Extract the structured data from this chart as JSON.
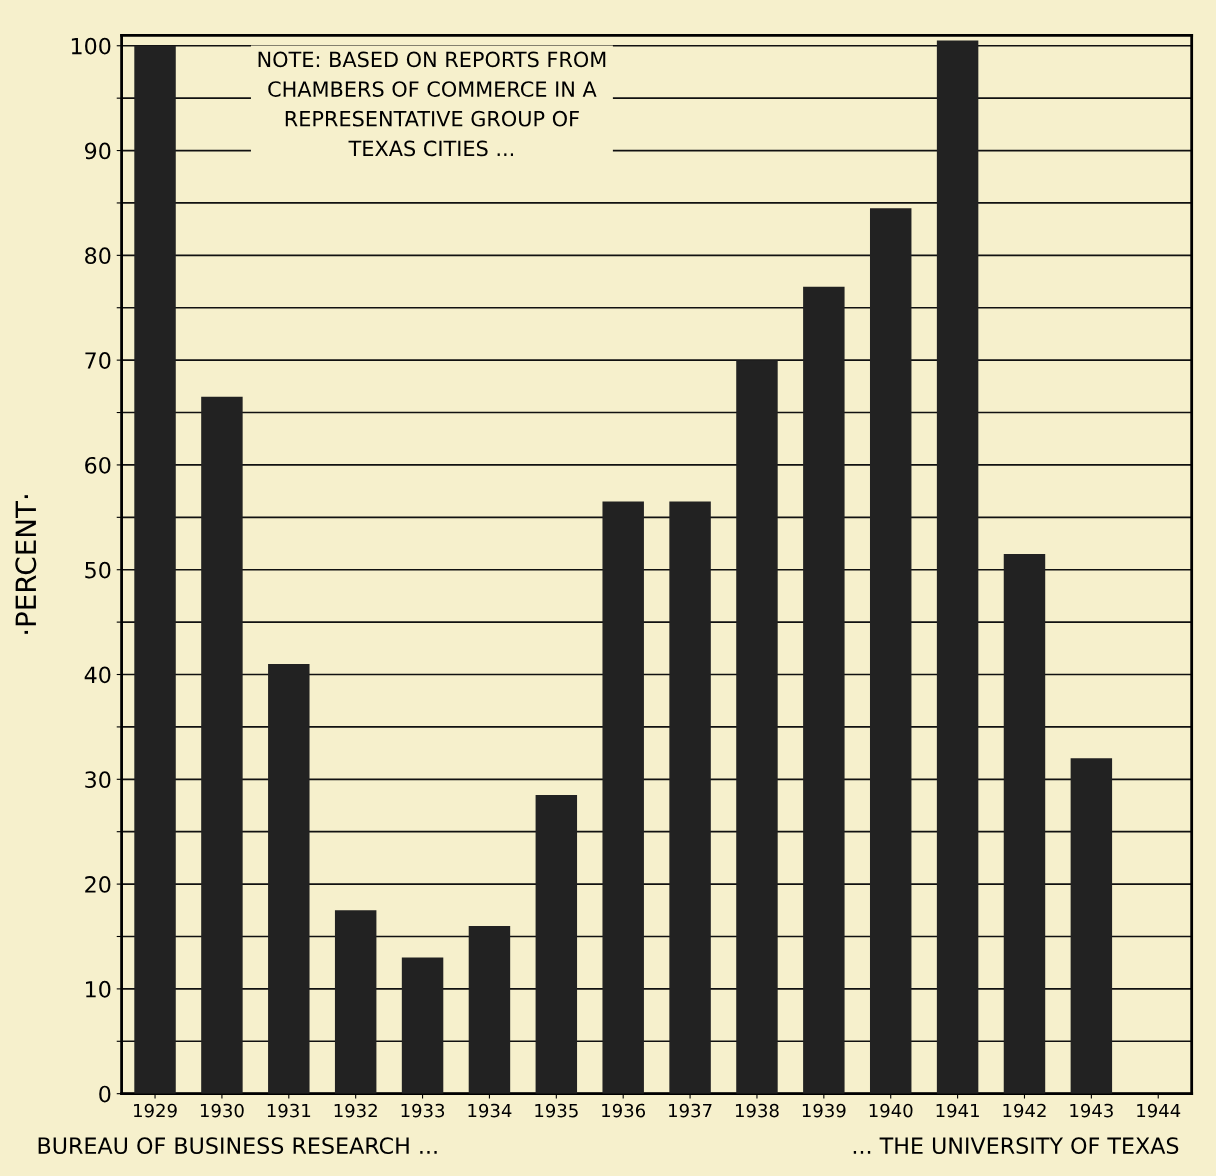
{
  "chart_data": {
    "type": "bar",
    "ylabel": "·PERCENT·",
    "categories": [
      "1929",
      "1930",
      "1931",
      "1932",
      "1933",
      "1934",
      "1935",
      "1936",
      "1937",
      "1938",
      "1939",
      "1940",
      "1941",
      "1942",
      "1943",
      "1944"
    ],
    "values": [
      100,
      66.5,
      41,
      17.5,
      13,
      16,
      28.5,
      56.5,
      56.5,
      70,
      77,
      84.5,
      100.5,
      51.5,
      32,
      null
    ],
    "color": "#222222",
    "ylim": [
      0,
      101
    ],
    "yticks": [
      0,
      {
        "value": 5,
        "label": null
      },
      10,
      {
        "value": 15,
        "label": null
      },
      20,
      {
        "value": 25,
        "label": null
      },
      30,
      {
        "value": 35,
        "label": null
      },
      40,
      {
        "value": 45,
        "label": null
      },
      50,
      {
        "value": 55,
        "label": null
      },
      60,
      {
        "value": 65,
        "label": null
      },
      70,
      {
        "value": 75,
        "label": null
      },
      80,
      {
        "value": 85,
        "label": null
      },
      90,
      {
        "value": 95,
        "label": null
      },
      100
    ],
    "grid": "y",
    "annotations": [
      "NOTE: BASED ON REPORTS FROM\nCHAMBERS OF COMMERCE IN A\nREPRESENTATIVE GROUP OF\nTEXAS CITIES ...",
      "BUREAU OF BUSINESS RESEARCH ...",
      "... THE UNIVERSITY OF TEXAS"
    ]
  }
}
